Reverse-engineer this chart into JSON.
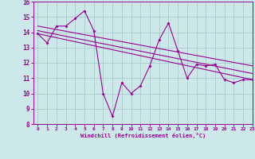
{
  "xlabel": "Windchill (Refroidissement éolien,°C)",
  "xlim": [
    -0.5,
    23
  ],
  "ylim": [
    8,
    16
  ],
  "yticks": [
    8,
    9,
    10,
    11,
    12,
    13,
    14,
    15,
    16
  ],
  "xticks": [
    0,
    1,
    2,
    3,
    4,
    5,
    6,
    7,
    8,
    9,
    10,
    11,
    12,
    13,
    14,
    15,
    16,
    17,
    18,
    19,
    20,
    21,
    22,
    23
  ],
  "bg_color": "#cce8e8",
  "line_color": "#990099",
  "grid_color": "#aacccc",
  "series1_x": [
    0,
    1,
    2,
    3,
    4,
    5,
    6,
    7,
    8,
    9,
    10,
    11,
    12,
    13,
    14,
    15,
    16,
    17,
    18,
    19,
    20,
    21,
    22,
    23
  ],
  "series1_y": [
    13.9,
    13.3,
    14.4,
    14.4,
    14.9,
    15.4,
    14.1,
    10.0,
    8.5,
    10.7,
    10.0,
    10.5,
    11.8,
    13.5,
    14.6,
    12.8,
    11.0,
    11.9,
    11.8,
    11.9,
    10.9,
    10.7,
    10.9,
    10.9
  ],
  "trend1_x": [
    0,
    23
  ],
  "trend1_y": [
    14.4,
    11.8
  ],
  "trend2_x": [
    0,
    23
  ],
  "trend2_y": [
    13.9,
    10.9
  ],
  "trend3_x": [
    0,
    23
  ],
  "trend3_y": [
    14.1,
    11.3
  ]
}
